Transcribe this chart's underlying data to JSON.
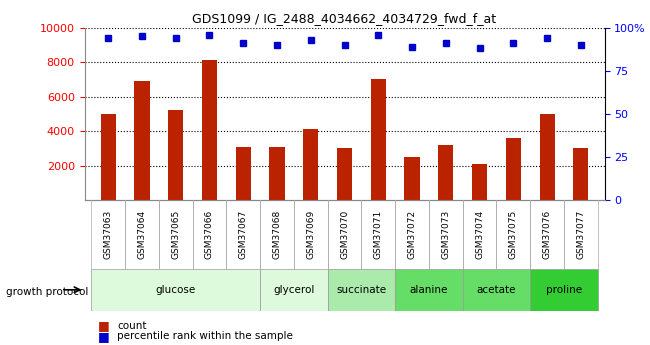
{
  "title": "GDS1099 / IG_2488_4034662_4034729_fwd_f_at",
  "samples": [
    "GSM37063",
    "GSM37064",
    "GSM37065",
    "GSM37066",
    "GSM37067",
    "GSM37068",
    "GSM37069",
    "GSM37070",
    "GSM37071",
    "GSM37072",
    "GSM37073",
    "GSM37074",
    "GSM37075",
    "GSM37076",
    "GSM37077"
  ],
  "counts": [
    5000,
    6900,
    5200,
    8100,
    3100,
    3100,
    4100,
    3000,
    7000,
    2500,
    3200,
    2100,
    3600,
    5000,
    3000
  ],
  "percentiles": [
    94,
    95,
    94,
    96,
    91,
    90,
    93,
    90,
    96,
    89,
    91,
    88,
    91,
    94,
    90
  ],
  "bar_color": "#bb2200",
  "dot_color": "#0000cc",
  "ylim_left": [
    0,
    10000
  ],
  "ylim_right": [
    0,
    100
  ],
  "yticks_left": [
    2000,
    4000,
    6000,
    8000,
    10000
  ],
  "yticks_right": [
    0,
    25,
    50,
    75,
    100
  ],
  "yticklabels_right": [
    "0",
    "25",
    "50",
    "75",
    "100%"
  ],
  "legend_count": "count",
  "legend_percentile": "percentile rank within the sample",
  "bar_width": 0.45,
  "group_configs": [
    {
      "label": "glucose",
      "start": 0,
      "end": 4,
      "color": "#ddfadd"
    },
    {
      "label": "glycerol",
      "start": 5,
      "end": 6,
      "color": "#ddfadd"
    },
    {
      "label": "succinate",
      "start": 7,
      "end": 8,
      "color": "#aaeaaa"
    },
    {
      "label": "alanine",
      "start": 9,
      "end": 10,
      "color": "#66dd66"
    },
    {
      "label": "acetate",
      "start": 11,
      "end": 12,
      "color": "#66dd66"
    },
    {
      "label": "proline",
      "start": 13,
      "end": 14,
      "color": "#33cc33"
    }
  ],
  "growth_protocol_label": "growth protocol",
  "background_color": "#ffffff",
  "plot_bg_color": "#ffffff"
}
